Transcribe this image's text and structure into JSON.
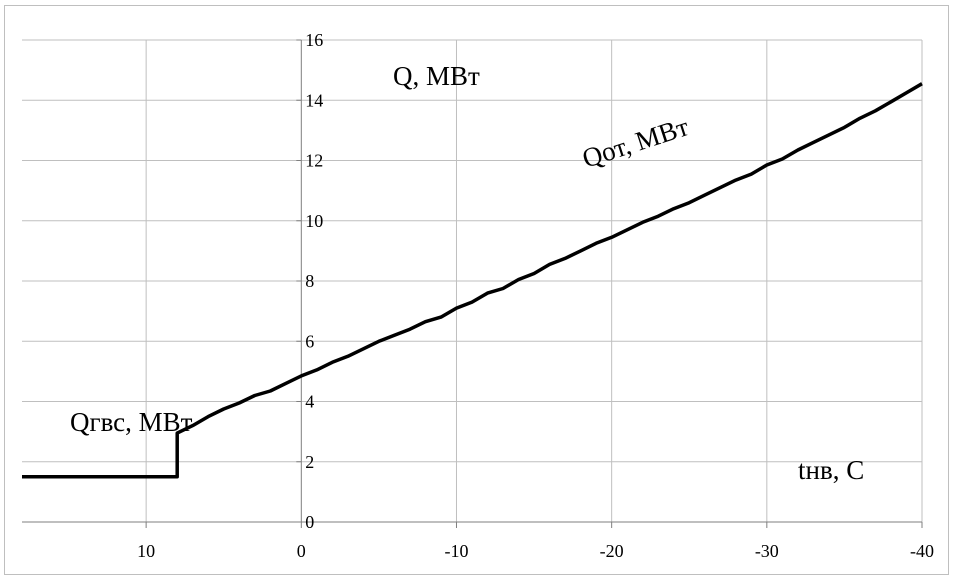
{
  "chart_data": {
    "type": "line",
    "title": "",
    "xlabel": "",
    "ylabel": "",
    "xlim": [
      18,
      -40
    ],
    "ylim": [
      0,
      16
    ],
    "x_ticks": [
      10,
      0,
      -10,
      -20,
      -30,
      -40
    ],
    "y_ticks": [
      0,
      2,
      4,
      6,
      8,
      10,
      12,
      14,
      16
    ],
    "grid": true,
    "colors": {
      "series": "#000000",
      "grid": "#bfbfbf",
      "axis": "#7f7f7f"
    },
    "annotations": {
      "y_axis_label": "Q, МВт",
      "q_heating_label": "Qот, МВт",
      "q_hot_water_label": "Qгвс, МВт",
      "x_axis_label": "tнв, С"
    },
    "series": [
      {
        "x": [
          18,
          8,
          8,
          7,
          6,
          5,
          4,
          3,
          2,
          1,
          0,
          -1,
          -2,
          -3,
          -4,
          -5,
          -6,
          -7,
          -8,
          -9,
          -10,
          -11,
          -12,
          -13,
          -14,
          -15,
          -16,
          -17,
          -18,
          -19,
          -20,
          -21,
          -22,
          -23,
          -24,
          -25,
          -26,
          -27,
          -28,
          -29,
          -30,
          -31,
          -32,
          -33,
          -34,
          -35,
          -36,
          -37,
          -38,
          -39,
          -40
        ],
        "values": [
          1.5,
          1.5,
          2.95,
          3.2,
          3.5,
          3.75,
          3.95,
          4.2,
          4.35,
          4.6,
          4.85,
          5.05,
          5.3,
          5.5,
          5.75,
          6.0,
          6.2,
          6.4,
          6.65,
          6.8,
          7.1,
          7.3,
          7.6,
          7.75,
          8.05,
          8.25,
          8.55,
          8.75,
          9.0,
          9.25,
          9.45,
          9.7,
          9.95,
          10.15,
          10.4,
          10.6,
          10.85,
          11.1,
          11.35,
          11.55,
          11.85,
          12.05,
          12.35,
          12.6,
          12.85,
          13.1,
          13.4,
          13.65,
          13.95,
          14.25,
          14.55
        ]
      }
    ]
  }
}
